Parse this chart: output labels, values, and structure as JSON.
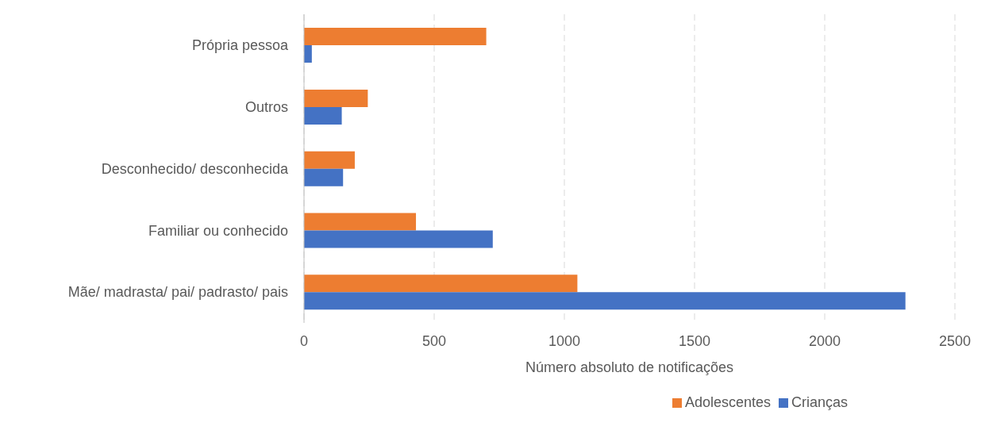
{
  "chart_data": {
    "type": "bar",
    "orientation": "horizontal",
    "xlabel": "Número absoluto de notificações",
    "categories": [
      "Própria pessoa",
      "Outros",
      "Desconhecido/ desconhecida",
      "Familiar ou conhecido",
      "Mãe/ madrasta/ pai/ padrasto/ pais"
    ],
    "series": [
      {
        "name": "Adolescentes",
        "color": "#ed7d31",
        "values": [
          700,
          245,
          195,
          430,
          1050
        ]
      },
      {
        "name": "Crianças",
        "color": "#4472c4",
        "values": [
          30,
          145,
          150,
          725,
          2310
        ]
      }
    ],
    "xlim": [
      0,
      2500
    ],
    "xticks": [
      0,
      500,
      1000,
      1500,
      2000,
      2500
    ],
    "grid": "x",
    "legend": "bottom"
  }
}
